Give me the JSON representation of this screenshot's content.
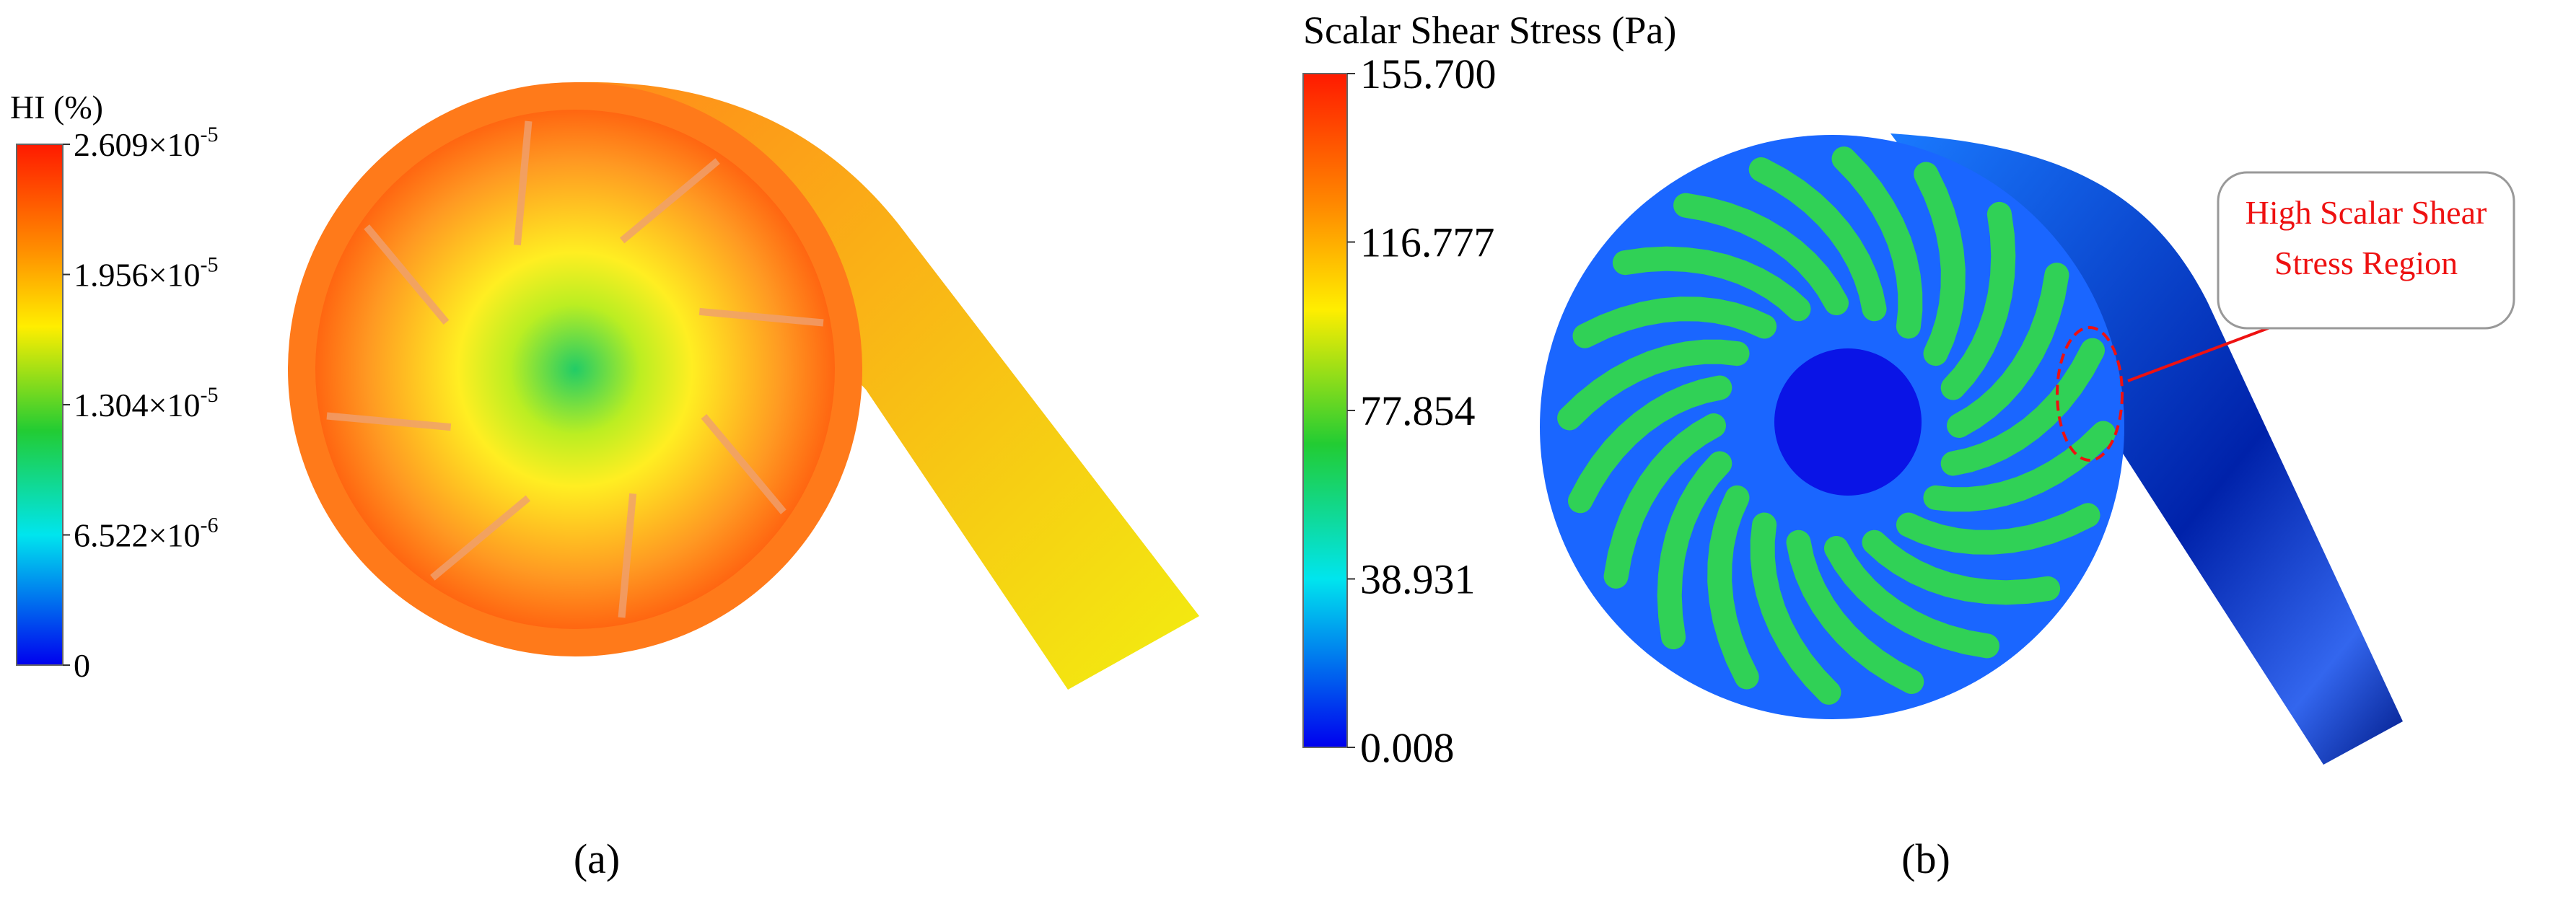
{
  "panel_a": {
    "legend_title": "HI (%)",
    "legend_ticks": [
      {
        "text": "2.609×10",
        "sup": "-5"
      },
      {
        "text": "1.956×10",
        "sup": "-5"
      },
      {
        "text": "1.304×10",
        "sup": "-5"
      },
      {
        "text": "6.522×10",
        "sup": "-6"
      },
      {
        "text": "0"
      }
    ],
    "caption": "(a)"
  },
  "panel_b": {
    "legend_title": "Scalar Shear Stress (Pa)",
    "legend_ticks": [
      "155.700",
      "116.777",
      "77.854",
      "38.931",
      "0.008"
    ],
    "annotation_lines": [
      "High Scalar Shear",
      "Stress Region"
    ],
    "caption": "(b)"
  }
}
